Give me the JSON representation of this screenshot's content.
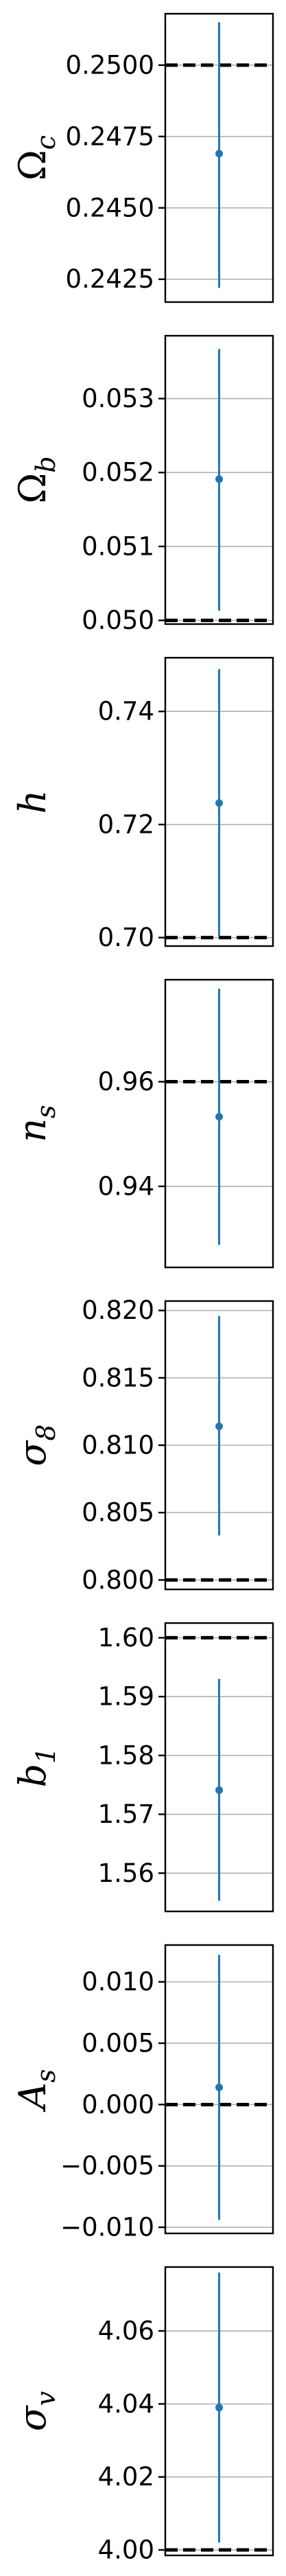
{
  "chart_data": [
    {
      "type": "scatter",
      "ylabel": "Ω",
      "ylabel_sub": "c",
      "ylim": [
        0.2417,
        0.2518
      ],
      "yticks": [
        0.2425,
        0.245,
        0.2475,
        0.25
      ],
      "ytick_labels": [
        "0.2425",
        "0.2450",
        "0.2475",
        "0.2500"
      ],
      "point": {
        "x": 0,
        "y": 0.2469,
        "err_low": 0.2422,
        "err_high": 0.2515
      },
      "reference": 0.25,
      "grid": true,
      "colors": {
        "point": "#1f77b4",
        "reference": "#000000"
      }
    },
    {
      "type": "scatter",
      "ylabel": "Ω",
      "ylabel_sub": "b",
      "ylim": [
        0.04995,
        0.05385
      ],
      "yticks": [
        0.05,
        0.051,
        0.052,
        0.053
      ],
      "ytick_labels": [
        "0.050",
        "0.051",
        "0.052",
        "0.053"
      ],
      "point": {
        "x": 0,
        "y": 0.05191,
        "err_low": 0.05013,
        "err_high": 0.05367
      },
      "reference": 0.05,
      "grid": true,
      "colors": {
        "point": "#1f77b4",
        "reference": "#000000"
      }
    },
    {
      "type": "scatter",
      "ylabel": "h",
      "ylabel_sub": "",
      "ylim": [
        0.6985,
        0.7495
      ],
      "yticks": [
        0.7,
        0.72,
        0.74
      ],
      "ytick_labels": [
        "0.70",
        "0.72",
        "0.74"
      ],
      "point": {
        "x": 0,
        "y": 0.7238,
        "err_low": 0.7002,
        "err_high": 0.7475
      },
      "reference": 0.7,
      "grid": true,
      "colors": {
        "point": "#1f77b4",
        "reference": "#000000"
      }
    },
    {
      "type": "scatter",
      "ylabel": "n",
      "ylabel_sub": "s",
      "ylim": [
        0.9245,
        0.9795
      ],
      "yticks": [
        0.94,
        0.96
      ],
      "ytick_labels": [
        "0.94",
        "0.96"
      ],
      "point": {
        "x": 0,
        "y": 0.9533,
        "err_low": 0.9288,
        "err_high": 0.9778
      },
      "reference": 0.96,
      "grid": true,
      "colors": {
        "point": "#1f77b4",
        "reference": "#000000"
      }
    },
    {
      "type": "scatter",
      "ylabel": "σ",
      "ylabel_sub": "8",
      "ylim": [
        0.7993,
        0.8207
      ],
      "yticks": [
        0.8,
        0.805,
        0.81,
        0.815,
        0.82
      ],
      "ytick_labels": [
        "0.800",
        "0.805",
        "0.810",
        "0.815",
        "0.820"
      ],
      "point": {
        "x": 0,
        "y": 0.8114,
        "err_low": 0.8033,
        "err_high": 0.8196
      },
      "reference": 0.8,
      "grid": true,
      "colors": {
        "point": "#1f77b4",
        "reference": "#000000"
      }
    },
    {
      "type": "scatter",
      "ylabel": "b",
      "ylabel_sub": "1",
      "ylim": [
        1.5535,
        1.6025
      ],
      "yticks": [
        1.56,
        1.57,
        1.58,
        1.59,
        1.6
      ],
      "ytick_labels": [
        "1.56",
        "1.57",
        "1.58",
        "1.59",
        "1.60"
      ],
      "point": {
        "x": 0,
        "y": 1.5741,
        "err_low": 1.5553,
        "err_high": 1.593
      },
      "reference": 1.6,
      "grid": true,
      "colors": {
        "point": "#1f77b4",
        "reference": "#000000"
      }
    },
    {
      "type": "scatter",
      "ylabel": "A",
      "ylabel_sub": "s",
      "ylim": [
        -0.0105,
        0.013
      ],
      "yticks": [
        -0.01,
        -0.005,
        0.0,
        0.005,
        0.01
      ],
      "ytick_labels": [
        "−0.010",
        "−0.005",
        "0.000",
        "0.005",
        "0.010"
      ],
      "point": {
        "x": 0,
        "y": 0.0014,
        "err_low": -0.0094,
        "err_high": 0.0122
      },
      "reference": 0.0,
      "grid": true,
      "colors": {
        "point": "#1f77b4",
        "reference": "#000000"
      }
    },
    {
      "type": "scatter",
      "ylabel": "σ",
      "ylabel_sub": "v",
      "ylim": [
        3.9985,
        4.0775
      ],
      "yticks": [
        4.0,
        4.02,
        4.04,
        4.06
      ],
      "ytick_labels": [
        "4.00",
        "4.02",
        "4.04",
        "4.06"
      ],
      "point": {
        "x": 0,
        "y": 4.039,
        "err_low": 4.002,
        "err_high": 4.076
      },
      "reference": 4.0,
      "grid": true,
      "colors": {
        "point": "#1f77b4",
        "reference": "#000000"
      }
    }
  ]
}
